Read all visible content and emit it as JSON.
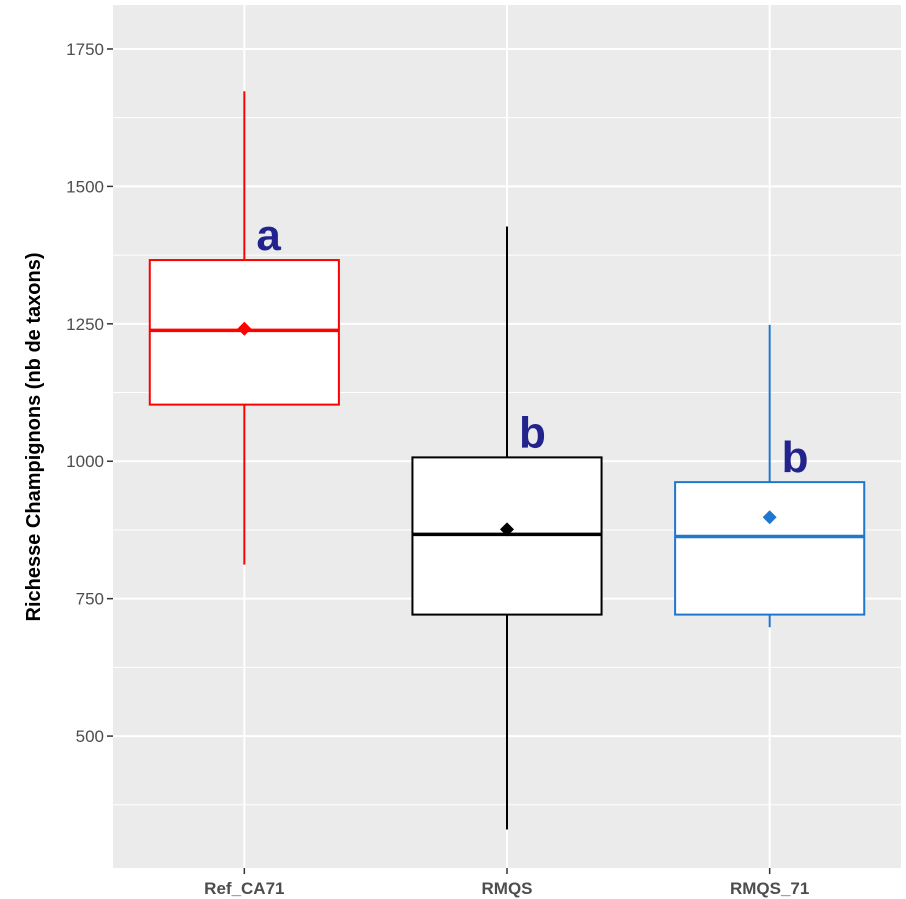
{
  "chart_data": {
    "type": "boxplot",
    "ylabel": "Richesse Champignons (nb de taxons)",
    "xlabel": "",
    "ylim": [
      260,
      1830
    ],
    "yticks": [
      500,
      750,
      1000,
      1250,
      1500,
      1750
    ],
    "y_minor_ticks": [
      375,
      625,
      875,
      1125,
      1375,
      1625
    ],
    "grid": true,
    "background_color": "#ebebeb",
    "grid_color": "#ffffff",
    "letter_color": "#23238e",
    "categories": [
      "Ref_CA71",
      "RMQS",
      "RMQS_71"
    ],
    "series": [
      {
        "name": "Ref_CA71",
        "color": "#ff0000",
        "whisker_low": 812,
        "q1": 1103,
        "median": 1238,
        "q3": 1366,
        "whisker_high": 1673,
        "mean": 1241,
        "letter": "a"
      },
      {
        "name": "RMQS",
        "color": "#000000",
        "whisker_low": 330,
        "q1": 721,
        "median": 867,
        "q3": 1007,
        "whisker_high": 1427,
        "mean": 876,
        "letter": "b"
      },
      {
        "name": "RMQS_71",
        "color": "#1f77d0",
        "whisker_low": 698,
        "q1": 721,
        "median": 863,
        "q3": 962,
        "whisker_high": 1248,
        "mean": 898,
        "letter": "b"
      }
    ]
  }
}
